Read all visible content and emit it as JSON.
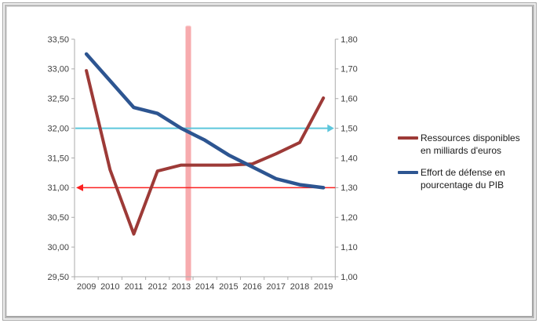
{
  "chart_data": {
    "type": "line",
    "title": "",
    "categories": [
      "2009",
      "2010",
      "2011",
      "2012",
      "2013",
      "2014",
      "2015",
      "2016",
      "2017",
      "2018",
      "2019"
    ],
    "series": [
      {
        "name": "Ressources disponibles en milliards d'euros",
        "axis": "left",
        "color": "#9d3a37",
        "stroke_width": 4,
        "values": [
          32.97,
          31.3,
          30.22,
          31.28,
          31.38,
          31.38,
          31.38,
          31.4,
          31.57,
          31.76,
          32.51
        ]
      },
      {
        "name": "Effort de défense en pourcentage du PIB",
        "axis": "right",
        "color": "#2d5591",
        "stroke_width": 4.5,
        "values": [
          1.75,
          1.66,
          1.57,
          1.55,
          1.5,
          1.46,
          1.41,
          1.37,
          1.33,
          1.31,
          1.3
        ]
      }
    ],
    "left_axis": {
      "min": 29.5,
      "max": 33.5,
      "step": 0.5,
      "tick_labels": [
        "33,50",
        "33,00",
        "32,50",
        "32,00",
        "31,50",
        "31,00",
        "30,50",
        "30,00",
        "29,50"
      ]
    },
    "right_axis": {
      "min": 1.0,
      "max": 1.8,
      "step": 0.1,
      "tick_labels": [
        "1,80",
        "1,70",
        "1,60",
        "1,50",
        "1,40",
        "1,30",
        "1,20",
        "1,10",
        "1,00"
      ]
    },
    "grid": false,
    "annotations": {
      "teal_target_line": {
        "left_value": 32.0,
        "right_value": 1.5,
        "color": "#5cc6dc",
        "arrow": "right"
      },
      "red_floor_line": {
        "left_value": 31.0,
        "right_value": 1.3,
        "color": "#fb2020",
        "arrow": "left"
      },
      "pink_vertical_band": {
        "at_category": "2013",
        "offset_categories": 0.3,
        "color": "#f7abae"
      }
    },
    "legend": {
      "position": "right",
      "entries": [
        {
          "line1": "Ressources disponibles",
          "line2": "en milliards d'euros"
        },
        {
          "line1": "Effort de défense en",
          "line2": "pourcentage du PIB"
        }
      ]
    }
  }
}
